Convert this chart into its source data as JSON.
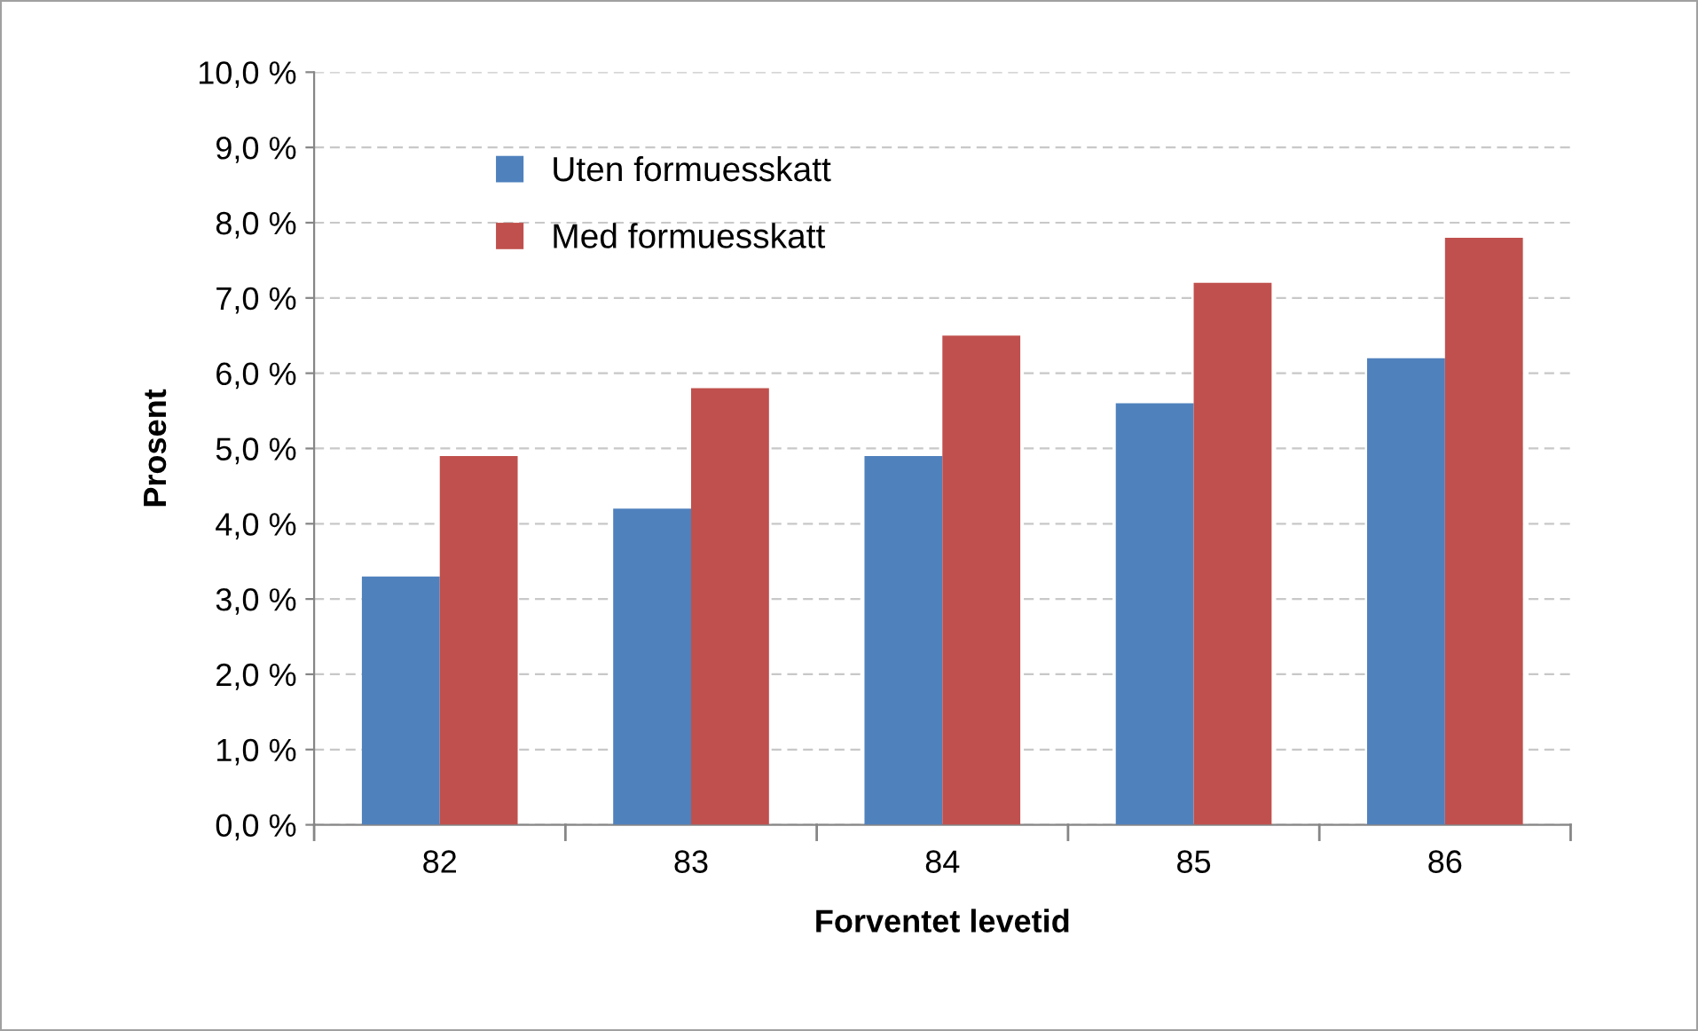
{
  "chart_data": {
    "type": "bar",
    "xlabel": "Forventet levetid",
    "ylabel": "Prosent",
    "categories": [
      "82",
      "83",
      "84",
      "85",
      "86"
    ],
    "series": [
      {
        "name": "Uten formuesskatt",
        "color": "#4f81bd",
        "values": [
          3.3,
          4.2,
          4.9,
          5.6,
          6.2
        ]
      },
      {
        "name": "Med formuesskatt",
        "color": "#c0504d",
        "values": [
          4.9,
          5.8,
          6.5,
          7.2,
          7.8
        ]
      }
    ],
    "ylim": [
      0,
      10
    ],
    "yticks": [
      {
        "value": 0,
        "label": "0,0 %"
      },
      {
        "value": 1,
        "label": "1,0 %"
      },
      {
        "value": 2,
        "label": "2,0 %"
      },
      {
        "value": 3,
        "label": "3,0 %"
      },
      {
        "value": 4,
        "label": "4,0 %"
      },
      {
        "value": 5,
        "label": "5,0 %"
      },
      {
        "value": 6,
        "label": "6,0 %"
      },
      {
        "value": 7,
        "label": "7,0 %"
      },
      {
        "value": 8,
        "label": "8,0 %"
      },
      {
        "value": 9,
        "label": "9,0 %"
      },
      {
        "value": 10,
        "label": "10,0 %"
      }
    ],
    "grid": "y",
    "legend": "top left"
  }
}
